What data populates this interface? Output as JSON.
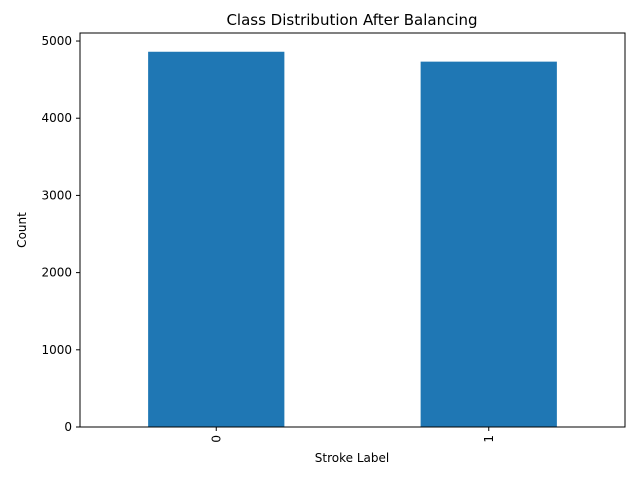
{
  "chart_data": {
    "type": "bar",
    "title": "Class Distribution After Balancing",
    "xlabel": "Stroke Label",
    "ylabel": "Count",
    "categories": [
      "0",
      "1"
    ],
    "values": [
      4861,
      4733
    ],
    "ylim": [
      0,
      5104
    ],
    "yticks": [
      0,
      1000,
      2000,
      3000,
      4000,
      5000
    ],
    "grid": false,
    "legend": "none",
    "bar_color": "#1f77b4"
  }
}
